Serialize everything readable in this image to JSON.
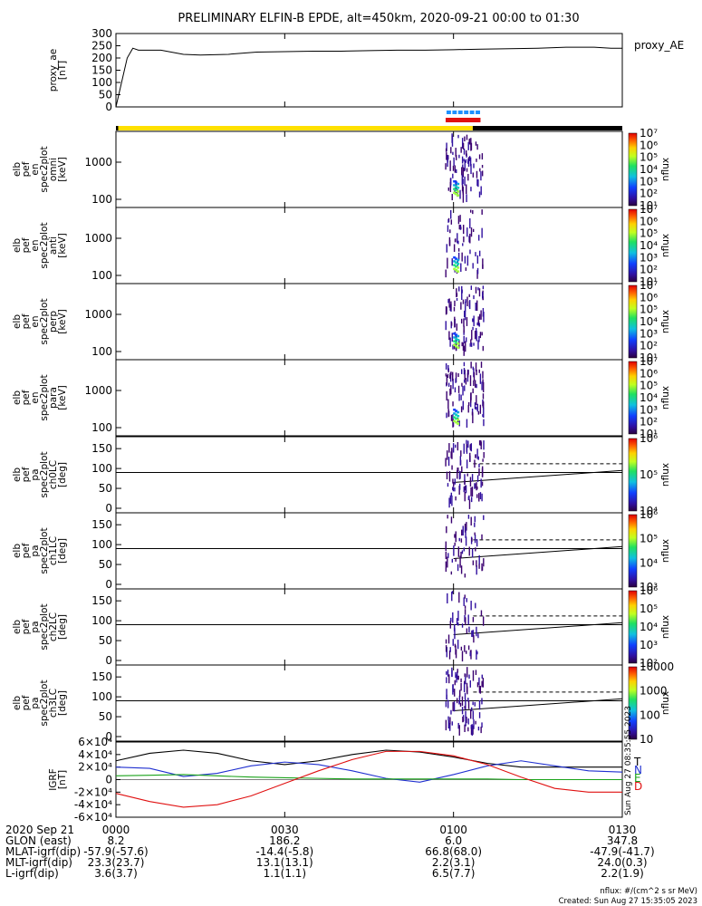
{
  "chart_data": {
    "type": "spectrogram-stack",
    "title": "PRELIMINARY ELFIN-B EPDE, alt=450km, 2020-09-21 00:00 to 01:30",
    "x_range_minutes": [
      0,
      90
    ],
    "x_ticks_minutes": [
      0,
      30,
      60,
      90
    ],
    "ae_panel": {
      "ylabel": [
        "proxy_ae",
        "[nT]"
      ],
      "legend": "proxy_AE",
      "yrange": [
        0,
        300
      ],
      "yticks": [
        "0",
        "50",
        "100",
        "150",
        "200",
        "250",
        "300"
      ],
      "series": {
        "x": [
          0,
          1,
          2,
          3,
          4,
          5,
          8,
          12,
          15,
          20,
          25,
          30,
          35,
          40,
          45,
          50,
          55,
          60,
          65,
          70,
          75,
          80,
          85,
          88,
          90
        ],
        "y": [
          0,
          100,
          200,
          240,
          232,
          232,
          232,
          215,
          212,
          215,
          224,
          226,
          228,
          228,
          230,
          232,
          232,
          234,
          236,
          238,
          240,
          244,
          244,
          240,
          240
        ]
      }
    },
    "status_bars": {
      "sci_zone_minutes": [
        58.6,
        64.8
      ],
      "black_segments": [
        [
          0,
          0.4
        ],
        [
          63.4,
          90
        ]
      ],
      "yellow_segment": [
        0.4,
        63.4
      ]
    },
    "energy_panels": [
      {
        "ylabel": [
          "elb",
          "pef",
          "en",
          "spec2plot",
          "omni",
          "[keV]"
        ],
        "yticks": [
          "100",
          "1000"
        ],
        "zmax_label": "10⁷",
        "zmin_label": "10¹"
      },
      {
        "ylabel": [
          "elb",
          "pef",
          "en",
          "spec2plot",
          "anti",
          "[keV]"
        ],
        "yticks": [
          "100",
          "1000"
        ],
        "zmax_label": "10⁷",
        "zmin_label": "10¹"
      },
      {
        "ylabel": [
          "elb",
          "pef",
          "en",
          "spec2plot",
          "perp",
          "[keV]"
        ],
        "yticks": [
          "100",
          "1000"
        ],
        "zmax_label": "10⁷",
        "zmin_label": "10¹"
      },
      {
        "ylabel": [
          "elb",
          "pef",
          "en",
          "spec2plot",
          "para",
          "[keV]"
        ],
        "yticks": [
          "100",
          "1000"
        ],
        "zmax_label": "10⁷",
        "zmin_label": "10¹"
      }
    ],
    "pa_panels": [
      {
        "ylabel": [
          "elb",
          "pef",
          "pa",
          "spec2plot",
          "ch0LC",
          "[deg]"
        ],
        "yticks": [
          "0",
          "50",
          "100",
          "150"
        ],
        "colorbar": [
          "10⁴",
          "10⁵",
          "10⁶"
        ]
      },
      {
        "ylabel": [
          "elb",
          "pef",
          "pa",
          "spec2plot",
          "ch1LC",
          "[deg]"
        ],
        "yticks": [
          "0",
          "50",
          "100",
          "150"
        ],
        "colorbar": [
          "10³",
          "10⁴",
          "10⁵",
          "10⁶"
        ]
      },
      {
        "ylabel": [
          "elb",
          "pef",
          "pa",
          "spec2plot",
          "ch2LC",
          "[deg]"
        ],
        "yticks": [
          "0",
          "50",
          "100",
          "150"
        ],
        "colorbar": [
          "10²",
          "10³",
          "10⁴",
          "10⁵",
          "10⁶"
        ]
      },
      {
        "ylabel": [
          "elb",
          "pef",
          "pa",
          "spec2plot",
          "ch3LC",
          "[deg]"
        ],
        "yticks": [
          "0",
          "50",
          "100",
          "150"
        ],
        "colorbar": [
          "10",
          "100",
          "1000",
          "10000"
        ]
      }
    ],
    "colorbar_energy_ticks": [
      "10¹",
      "10²",
      "10³",
      "10⁴",
      "10⁵",
      "10⁶",
      "10⁷"
    ],
    "colorbar_label": "nflux",
    "igrf_panel": {
      "ylabel": [
        "IGRF",
        "[nT]"
      ],
      "yrange": [
        -60000,
        60000
      ],
      "yticks": [
        "-6×10⁴",
        "-4×10⁴",
        "-2×10⁴",
        "0",
        "2×10⁴",
        "4×10⁴",
        "6×10⁴"
      ],
      "legend": [
        {
          "name": "T",
          "color": "#000000"
        },
        {
          "name": "N",
          "color": "#1f2fd0"
        },
        {
          "name": "E",
          "color": "#1aa31a"
        },
        {
          "name": "D",
          "color": "#e01010"
        }
      ],
      "series": {
        "T": {
          "x": [
            0,
            6,
            12,
            18,
            24,
            30,
            36,
            42,
            48,
            54,
            60,
            66,
            72,
            78,
            84,
            90
          ],
          "y": [
            30000,
            42000,
            47000,
            42000,
            30000,
            24000,
            30000,
            40000,
            47000,
            44000,
            36000,
            26000,
            20000,
            20000,
            20000,
            20000
          ]
        },
        "N": {
          "x": [
            0,
            6,
            12,
            18,
            24,
            30,
            36,
            42,
            48,
            54,
            60,
            66,
            72,
            78,
            84,
            90
          ],
          "y": [
            20000,
            18000,
            5000,
            10000,
            22000,
            28000,
            24000,
            14000,
            2000,
            -4000,
            8000,
            22000,
            30000,
            22000,
            14000,
            12000
          ]
        },
        "E": {
          "x": [
            0,
            6,
            12,
            18,
            24,
            30,
            36,
            42,
            48,
            54,
            60,
            66,
            72,
            78,
            84,
            90
          ],
          "y": [
            6000,
            7000,
            8000,
            6000,
            4000,
            3000,
            2000,
            1000,
            1000,
            1000,
            1000,
            1000,
            0,
            0,
            0,
            0
          ]
        },
        "D": {
          "x": [
            0,
            6,
            12,
            18,
            24,
            30,
            36,
            42,
            48,
            54,
            60,
            66,
            72,
            78,
            84,
            90
          ],
          "y": [
            -22000,
            -35000,
            -44000,
            -40000,
            -26000,
            -6000,
            14000,
            32000,
            45000,
            45000,
            38000,
            24000,
            4000,
            -14000,
            -20000,
            -20000
          ]
        }
      },
      "side_text": "Sun Aug 27 08:35:55 2023"
    }
  },
  "footer": {
    "rows": [
      {
        "label": "2020 Sep 21",
        "values": [
          "0000",
          "0030",
          "0100",
          "0130"
        ]
      },
      {
        "label": "GLON (east)",
        "values": [
          "8.2",
          "186.2",
          "6.0",
          "347.8"
        ]
      },
      {
        "label": "MLAT-igrf(dip)",
        "values": [
          "-57.9(-57.6)",
          "-14.4(-5.8)",
          "66.8(68.0)",
          "-47.9(-41.7)"
        ]
      },
      {
        "label": "MLT-igrf(dip)",
        "values": [
          "23.3(23.7)",
          "13.1(13.1)",
          "2.2(3.1)",
          "24.0(0.3)"
        ]
      },
      {
        "label": "L-igrf(dip)",
        "values": [
          "3.6(3.7)",
          "1.1(1.1)",
          "6.5(7.7)",
          "2.2(1.9)"
        ]
      }
    ],
    "units_note": "nflux: #/(cm^2 s sr MeV)",
    "created": "Created: Sun Aug 27 15:35:05 2023"
  },
  "colors": {
    "sci_blue": "#1e90ff",
    "sci_red": "#e01010",
    "bar_yellow": "#ffe000",
    "bar_black": "#000000"
  }
}
